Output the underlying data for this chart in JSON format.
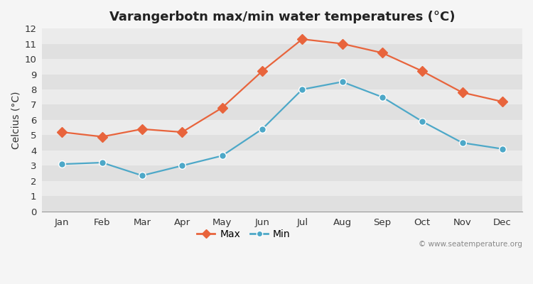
{
  "title": "Varangerbotn max/min water temperatures (°C)",
  "xlabel_months": [
    "Jan",
    "Feb",
    "Mar",
    "Apr",
    "May",
    "Jun",
    "Jul",
    "Aug",
    "Sep",
    "Oct",
    "Nov",
    "Dec"
  ],
  "max_values": [
    5.2,
    4.9,
    5.4,
    5.2,
    6.8,
    9.2,
    11.3,
    11.0,
    10.4,
    9.2,
    7.8,
    7.2
  ],
  "min_values": [
    3.1,
    3.2,
    2.35,
    3.0,
    3.65,
    5.4,
    8.0,
    8.5,
    7.5,
    5.9,
    4.5,
    4.1
  ],
  "max_color": "#e8643c",
  "min_color": "#4da8c8",
  "ylabel": "Celcius (°C)",
  "ylim": [
    0,
    12
  ],
  "yticks": [
    0,
    1,
    2,
    3,
    4,
    5,
    6,
    7,
    8,
    9,
    10,
    11,
    12
  ],
  "band_light": "#ebebeb",
  "band_dark": "#e0e0e0",
  "figure_bg": "#f5f5f5",
  "legend_labels": [
    "Max",
    "Min"
  ],
  "watermark": "© www.seatemperature.org",
  "title_fontsize": 13,
  "label_fontsize": 10,
  "tick_fontsize": 9.5,
  "line_width": 1.6,
  "marker_size_max": 7,
  "marker_size_min": 7
}
